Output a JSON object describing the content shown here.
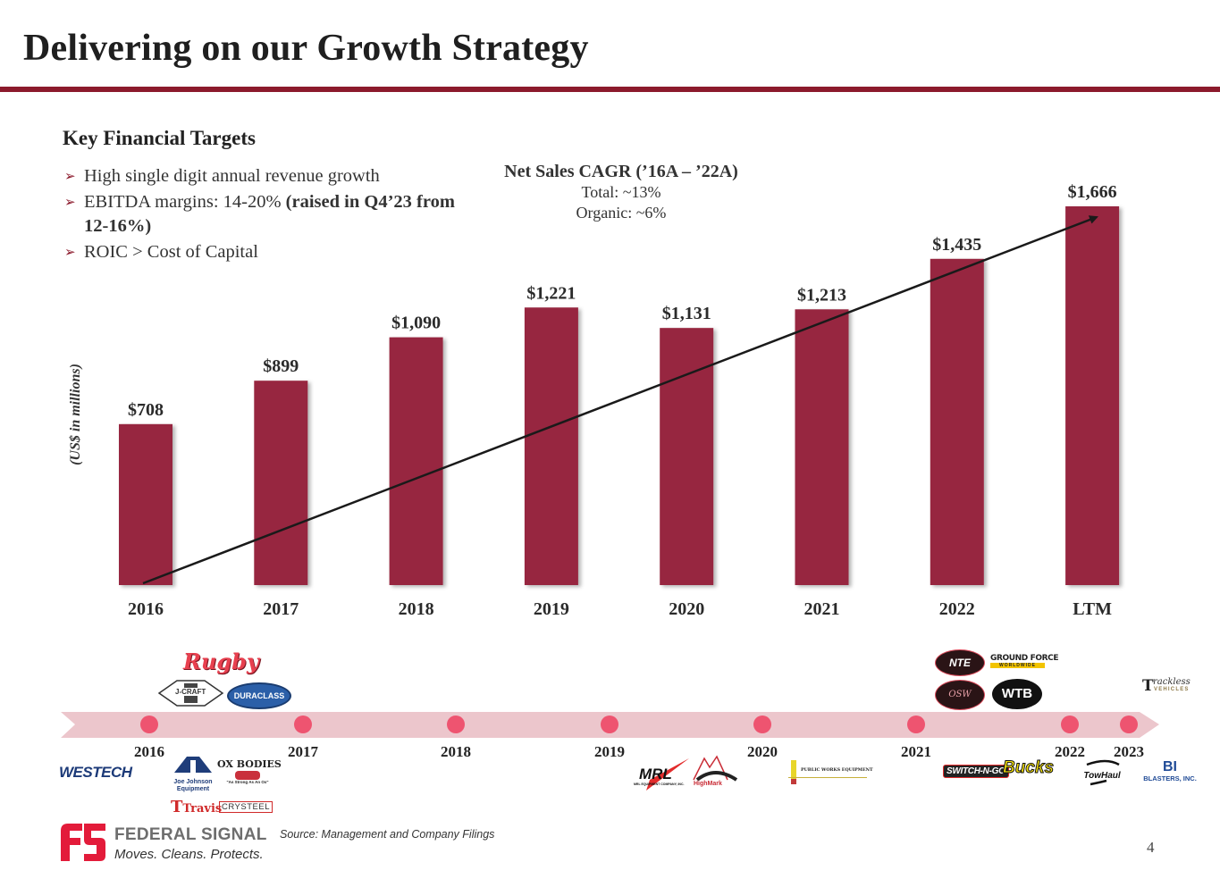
{
  "slide": {
    "title": "Delivering on our Growth Strategy",
    "page_number": "4"
  },
  "targets": {
    "heading": "Key Financial Targets",
    "bullets": [
      {
        "text": "High single digit annual revenue growth",
        "bold": ""
      },
      {
        "text": "EBITDA margins: 14-20% ",
        "bold": "(raised in Q4’23 from 12-16%)"
      },
      {
        "text": "ROIC > Cost of Capital",
        "bold": ""
      }
    ]
  },
  "cagr": {
    "heading": "Net Sales CAGR (’16A – ’22A)",
    "total": "Total: ~13%",
    "organic": "Organic: ~6%"
  },
  "chart_data": {
    "type": "bar",
    "title": "",
    "xlabel": "",
    "ylabel": "(US$ in millions)",
    "categories": [
      "2016",
      "2017",
      "2018",
      "2019",
      "2020",
      "2021",
      "2022",
      "LTM"
    ],
    "values": [
      708,
      899,
      1090,
      1221,
      1131,
      1213,
      1435,
      1666
    ],
    "data_labels": [
      "$708",
      "$899",
      "$1,090",
      "$1,221",
      "$1,131",
      "$1,213",
      "$1,435",
      "$1,666"
    ],
    "ylim": [
      0,
      1666
    ],
    "grid": false,
    "legend": "none",
    "bar_color": "#97283f",
    "annotations": [
      {
        "type": "trend-arrow",
        "from_category": "2016",
        "to_category": "LTM",
        "color": "#1a1a1a"
      }
    ]
  },
  "timeline": {
    "years": [
      "2016",
      "2017",
      "2018",
      "2019",
      "2020",
      "2021",
      "2022",
      "2023"
    ],
    "band_color": "#ecc6cc",
    "dot_color": "#ee5470",
    "acquisitions": {
      "2016_above": [
        "Rugby",
        "J-Craft",
        "Duraclass"
      ],
      "2016_below": [
        "Westech"
      ],
      "2017_below": [
        "Joe Johnson Equipment",
        "Ox Bodies",
        "Travis",
        "Crysteel"
      ],
      "2019_below": [
        "MRL Equipment Company, Inc.",
        "HighMark"
      ],
      "2020_below": [
        "Public Works Equipment"
      ],
      "2021_above": [
        "NTE",
        "Ground Force Worldwide",
        "OSW",
        "WTB"
      ],
      "2021_below": [
        "Switch-N-Go",
        "Bucks"
      ],
      "2022_below": [
        "TowHaul"
      ],
      "2023_above": [
        "Trackless Vehicles"
      ],
      "2023_below": [
        "Blasters, Inc."
      ]
    },
    "logo_text": {
      "rugby": "Rugby",
      "jcraft": "J-CRAFT",
      "duraclass": "DURACLASS",
      "westech": "WESTECH",
      "joe_johnson": "Joe Johnson Equipment",
      "ox_bodies": "OX BODIES",
      "ox_tagline": "\"As Strong As An Ox\"",
      "travis": "Travis",
      "crysteel": "CRYSTEEL",
      "mrl": "MRL",
      "mrl_sub": "MRL EQUIPMENT COMPANY, INC.",
      "highmark": "HighMark",
      "pwe": "PUBLIC WORKS EQUIPMENT",
      "nte": "NTE",
      "ground_force": "GROUND FORCE",
      "ground_force_sub": "WORLDWIDE",
      "osw": "OSW",
      "wtb": "WTB",
      "switchngo": "SWITCH-N-GO",
      "bucks": "Bucks",
      "towhaul": "TowHaul",
      "trackless_t": "T",
      "trackless": "rackless",
      "trackless_sub": "VEHICLES",
      "blasters_mark": "BI",
      "blasters": "BLASTERS, INC."
    }
  },
  "footer": {
    "brand": "FEDERAL SIGNAL",
    "tagline": "Moves. Cleans. Protects.",
    "source": "Source: Management and Company Filings",
    "brand_color": "#e31b3a"
  }
}
